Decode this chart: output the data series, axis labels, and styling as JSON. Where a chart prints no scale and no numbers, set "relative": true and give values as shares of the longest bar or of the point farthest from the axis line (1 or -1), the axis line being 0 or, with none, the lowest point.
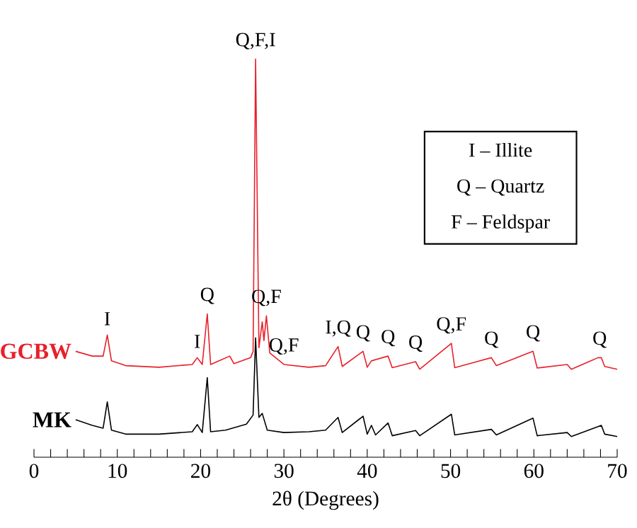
{
  "chart_data": {
    "type": "line",
    "relative": true,
    "xlabel": "2θ  (Degrees)",
    "xlim": [
      0,
      70
    ],
    "xticks": [
      0,
      {
        "value": 2,
        "label": null
      },
      {
        "value": 4,
        "label": null
      },
      {
        "value": 6,
        "label": null
      },
      {
        "value": 8,
        "label": null
      },
      10,
      {
        "value": 12,
        "label": null
      },
      {
        "value": 14,
        "label": null
      },
      {
        "value": 16,
        "label": null
      },
      {
        "value": 18,
        "label": null
      },
      20,
      {
        "value": 22,
        "label": null
      },
      {
        "value": 24,
        "label": null
      },
      {
        "value": 26,
        "label": null
      },
      {
        "value": 28,
        "label": null
      },
      30,
      {
        "value": 32,
        "label": null
      },
      {
        "value": 34,
        "label": null
      },
      {
        "value": 36,
        "label": null
      },
      {
        "value": 38,
        "label": null
      },
      40,
      {
        "value": 42,
        "label": null
      },
      {
        "value": 44,
        "label": null
      },
      {
        "value": 46,
        "label": null
      },
      {
        "value": 48,
        "label": null
      },
      50,
      {
        "value": 52,
        "label": null
      },
      {
        "value": 54,
        "label": null
      },
      {
        "value": 56,
        "label": null
      },
      {
        "value": 58,
        "label": null
      },
      60,
      {
        "value": 62,
        "label": null
      },
      {
        "value": 64,
        "label": null
      },
      {
        "value": 66,
        "label": null
      },
      {
        "value": 68,
        "label": null
      },
      70
    ],
    "series": [
      {
        "name": "GCBW",
        "color": "#e8202a",
        "x": [
          5,
          7,
          8.3,
          8.8,
          9.3,
          11,
          15,
          19,
          19.6,
          20.2,
          20.8,
          21.2,
          23.5,
          24,
          26,
          26.3,
          26.6,
          27,
          27.4,
          27.6,
          27.9,
          28.3,
          30,
          33,
          35,
          36.5,
          37,
          39.5,
          40,
          40.5,
          42.5,
          43,
          45.8,
          46.3,
          50.1,
          50.5,
          54.9,
          55.5,
          59.9,
          60.4,
          64,
          64.5,
          67.7,
          68.1,
          68.5,
          70
        ],
        "values": [
          0.266,
          0.254,
          0.254,
          0.307,
          0.242,
          0.23,
          0.226,
          0.233,
          0.25,
          0.233,
          0.36,
          0.233,
          0.254,
          0.235,
          0.25,
          0.266,
          1.0,
          0.275,
          0.34,
          0.293,
          0.355,
          0.262,
          0.233,
          0.226,
          0.23,
          0.278,
          0.228,
          0.266,
          0.226,
          0.242,
          0.254,
          0.225,
          0.24,
          0.221,
          0.286,
          0.225,
          0.25,
          0.23,
          0.266,
          0.224,
          0.233,
          0.221,
          0.25,
          0.25,
          0.228,
          0.221
        ]
      },
      {
        "name": "MK",
        "color": "#000000",
        "x": [
          5,
          7,
          8.3,
          8.8,
          9.3,
          11,
          15,
          19,
          19.6,
          20.2,
          20.8,
          21.2,
          23,
          25.5,
          26.3,
          26.6,
          27,
          27.4,
          28,
          30,
          33,
          35,
          36.5,
          37,
          39.5,
          40,
          40.5,
          41,
          42.5,
          43,
          45.8,
          46.3,
          50.1,
          50.5,
          54.9,
          55.5,
          59.9,
          60.4,
          64,
          64.5,
          67.7,
          68.1,
          68.5,
          70
        ],
        "values": [
          0.094,
          0.08,
          0.073,
          0.139,
          0.068,
          0.058,
          0.058,
          0.064,
          0.082,
          0.062,
          0.2,
          0.064,
          0.068,
          0.083,
          0.106,
          0.3,
          0.1,
          0.11,
          0.068,
          0.062,
          0.064,
          0.068,
          0.1,
          0.062,
          0.103,
          0.058,
          0.08,
          0.056,
          0.086,
          0.054,
          0.067,
          0.054,
          0.108,
          0.056,
          0.07,
          0.056,
          0.098,
          0.054,
          0.062,
          0.052,
          0.077,
          0.08,
          0.058,
          0.052
        ]
      }
    ],
    "annotations": [
      {
        "text": "I",
        "x": 8.8,
        "y": 0.307
      },
      {
        "text": "I",
        "x": 19.6,
        "y": 0.25
      },
      {
        "text": "Q",
        "x": 20.8,
        "y": 0.36
      },
      {
        "text": "Q,F,I",
        "x": 26.6,
        "y": 1.0
      },
      {
        "text": "Q,F",
        "x": 27.9,
        "y": 0.355
      },
      {
        "text": "Q,F",
        "x": 30,
        "y": 0.233
      },
      {
        "text": "I,Q",
        "x": 36.5,
        "y": 0.278
      },
      {
        "text": "Q",
        "x": 39.5,
        "y": 0.266
      },
      {
        "text": "Q",
        "x": 42.5,
        "y": 0.254
      },
      {
        "text": "Q",
        "x": 45.8,
        "y": 0.24
      },
      {
        "text": "Q,F",
        "x": 50.1,
        "y": 0.286
      },
      {
        "text": "Q",
        "x": 54.9,
        "y": 0.25
      },
      {
        "text": "Q",
        "x": 59.9,
        "y": 0.266
      },
      {
        "text": "Q",
        "x": 67.9,
        "y": 0.25
      },
      "I – Illite",
      "Q – Quartz",
      "F – Feldspar"
    ]
  }
}
